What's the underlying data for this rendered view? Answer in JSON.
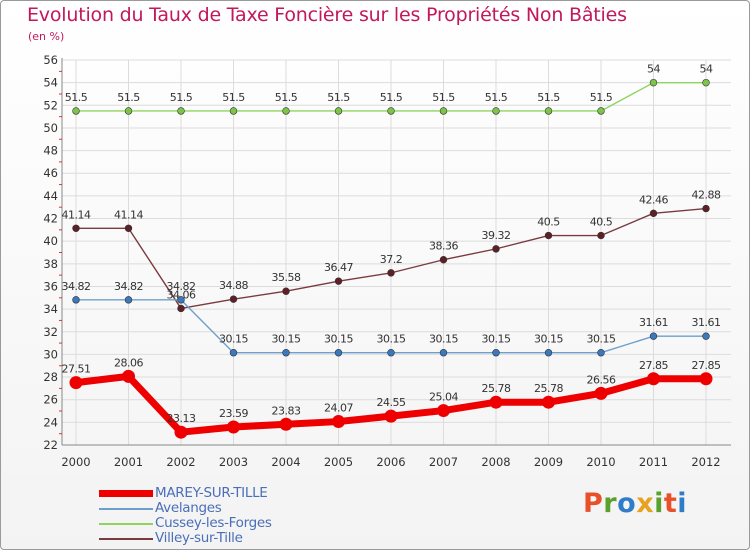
{
  "title": "Evolution du Taux de Taxe Foncière sur les Propriétés Non Bâties",
  "unit_label": "(en %)",
  "logo_text": "Proxiti",
  "logo_colors": [
    "#e8502a",
    "#5aa02c",
    "#2f7cc9",
    "#e8a21f",
    "#5aa02c",
    "#e8502a",
    "#2f7cc9"
  ],
  "chart_data": {
    "type": "line",
    "title": "Evolution du Taux de Taxe Foncière sur les Propriétés Non Bâties",
    "ylabel": "(en %)",
    "xlabel": "",
    "ylim": [
      22,
      56
    ],
    "yticks": [
      22,
      24,
      26,
      28,
      30,
      32,
      34,
      36,
      38,
      40,
      42,
      44,
      46,
      48,
      50,
      52,
      54,
      56
    ],
    "grid": true,
    "legend_position": "bottom-left",
    "categories": [
      "2000",
      "2001",
      "2002",
      "2003",
      "2004",
      "2005",
      "2006",
      "2007",
      "2008",
      "2009",
      "2010",
      "2011",
      "2012"
    ],
    "series": [
      {
        "name": "Cussey-les-Forges",
        "color": "#8ed460",
        "marker": "#7dc44a",
        "values": [
          51.5,
          51.5,
          51.5,
          51.5,
          51.5,
          51.5,
          51.5,
          51.5,
          51.5,
          51.5,
          51.5,
          54,
          54
        ],
        "labels": [
          "51.5",
          "51.5",
          "51.5",
          "51.5",
          "51.5",
          "51.5",
          "51.5",
          "51.5",
          "51.5",
          "51.5",
          "51.5",
          "54",
          "54"
        ]
      },
      {
        "name": "Villey-sur-Tille",
        "color": "#7a3b3e",
        "marker": "#5e1f27",
        "values": [
          41.14,
          41.14,
          34.06,
          34.88,
          35.58,
          36.47,
          37.2,
          38.36,
          39.32,
          40.5,
          40.5,
          42.46,
          42.88
        ],
        "labels": [
          "41.14",
          "41.14",
          "34.06",
          "34.88",
          "35.58",
          "36.47",
          "37.2",
          "38.36",
          "39.32",
          "40.5",
          "40.5",
          "42.46",
          "42.88"
        ]
      },
      {
        "name": "Avelanges",
        "color": "#6e9fcc",
        "marker": "#3a78c0",
        "values": [
          34.82,
          34.82,
          34.82,
          30.15,
          30.15,
          30.15,
          30.15,
          30.15,
          30.15,
          30.15,
          30.15,
          31.61,
          31.61
        ],
        "labels": [
          "34.82",
          "34.82",
          "34.82",
          "30.15",
          "30.15",
          "30.15",
          "30.15",
          "30.15",
          "30.15",
          "30.15",
          "30.15",
          "31.61",
          "31.61"
        ]
      },
      {
        "name": "MAREY-SUR-TILLE",
        "color": "#ee0000",
        "marker": "#ee0000",
        "values": [
          27.51,
          28.06,
          23.13,
          23.59,
          23.83,
          24.07,
          24.55,
          25.04,
          25.78,
          25.78,
          26.56,
          27.85,
          27.85
        ],
        "labels": [
          "27.51",
          "28.06",
          "23.13",
          "23.59",
          "23.83",
          "24.07",
          "24.55",
          "25.04",
          "25.78",
          "25.78",
          "26.56",
          "27.85",
          "27.85"
        ]
      }
    ],
    "legend": [
      {
        "name": "MAREY-SUR-TILLE",
        "color": "#ee0000"
      },
      {
        "name": "Avelanges",
        "color": "#6e9fcc"
      },
      {
        "name": "Cussey-les-Forges",
        "color": "#8ed460"
      },
      {
        "name": "Villey-sur-Tille",
        "color": "#7a3b3e"
      }
    ]
  }
}
